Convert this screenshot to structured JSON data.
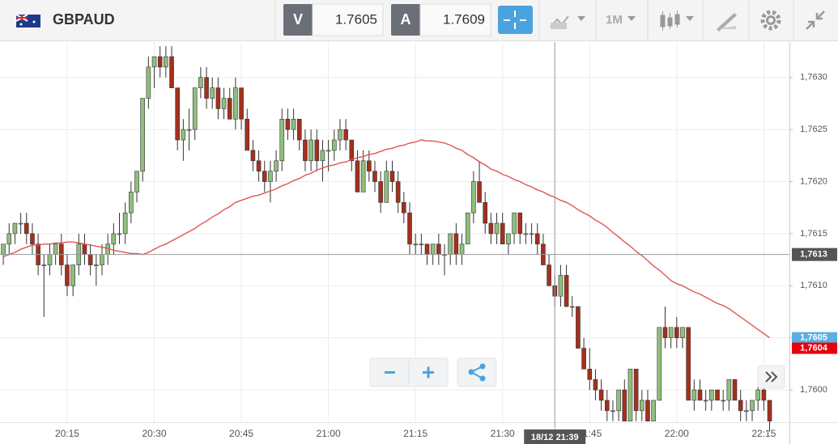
{
  "toolbar": {
    "symbol": "GBPAUD",
    "sell": {
      "label": "V",
      "price": 1.7605
    },
    "buy": {
      "label": "A",
      "price": 1.7609
    },
    "timeframe": "1M"
  },
  "chart_data": {
    "type": "candlestick",
    "categories": [
      null,
      null,
      null,
      null,
      null,
      null,
      null,
      null,
      null,
      null,
      null,
      "20:15",
      null,
      null,
      null,
      null,
      null,
      null,
      null,
      null,
      null,
      null,
      null,
      null,
      null,
      null,
      "20:30",
      null,
      null,
      null,
      null,
      null,
      null,
      null,
      null,
      null,
      null,
      null,
      null,
      null,
      null,
      "20:45",
      null,
      null,
      null,
      null,
      null,
      null,
      null,
      null,
      null,
      null,
      null,
      null,
      null,
      null,
      "21:00",
      null,
      null,
      null,
      null,
      null,
      null,
      null,
      null,
      null,
      null,
      null,
      null,
      null,
      null,
      "21:15",
      null,
      null,
      null,
      null,
      null,
      null,
      null,
      null,
      null,
      null,
      null,
      null,
      null,
      null,
      "21:30",
      null,
      null,
      null,
      null,
      null,
      null,
      null,
      null,
      null,
      null,
      null,
      null,
      null,
      null,
      "21:45",
      null,
      null,
      null,
      null,
      null,
      null,
      null,
      null,
      null,
      null,
      null,
      null,
      null,
      null,
      "22:00",
      null,
      null,
      null,
      null,
      null,
      null,
      null,
      null,
      null,
      null,
      null,
      null,
      null,
      null,
      "22:15",
      null
    ],
    "candles": [
      [
        1.7613,
        1.7614,
        1.7612,
        1.7614
      ],
      [
        1.7614,
        1.7616,
        1.7613,
        1.7615
      ],
      [
        1.7615,
        1.7616,
        1.7614,
        1.7616
      ],
      [
        1.7616,
        1.7617,
        1.7615,
        1.7616
      ],
      [
        1.7616,
        1.7617,
        1.7614,
        1.7615
      ],
      [
        1.7615,
        1.7616,
        1.7613,
        1.7614
      ],
      [
        1.7614,
        1.7615,
        1.7611,
        1.7612
      ],
      [
        1.7612,
        1.7613,
        1.7607,
        1.7612
      ],
      [
        1.7612,
        1.7614,
        1.7611,
        1.7613
      ],
      [
        1.7613,
        1.7614,
        1.7612,
        1.7614
      ],
      [
        1.7614,
        1.7615,
        1.7611,
        1.7612
      ],
      [
        1.7612,
        1.7613,
        1.7609,
        1.761
      ],
      [
        1.761,
        1.7612,
        1.7609,
        1.7612
      ],
      [
        1.7612,
        1.7615,
        1.7611,
        1.7614
      ],
      [
        1.7614,
        1.7615,
        1.7612,
        1.7613
      ],
      [
        1.7613,
        1.7614,
        1.7611,
        1.7612
      ],
      [
        1.7612,
        1.7613,
        1.761,
        1.7612
      ],
      [
        1.7612,
        1.7614,
        1.7611,
        1.7613
      ],
      [
        1.7613,
        1.7615,
        1.7612,
        1.7614
      ],
      [
        1.7614,
        1.7616,
        1.7613,
        1.7615
      ],
      [
        1.7615,
        1.7617,
        1.7614,
        1.7615
      ],
      [
        1.7615,
        1.7618,
        1.7614,
        1.7617
      ],
      [
        1.7617,
        1.762,
        1.7616,
        1.7619
      ],
      [
        1.7619,
        1.7621,
        1.7618,
        1.7621
      ],
      [
        1.7621,
        1.7628,
        1.762,
        1.7628
      ],
      [
        1.7628,
        1.7632,
        1.7627,
        1.7631
      ],
      [
        1.7631,
        1.7632,
        1.7629,
        1.7632
      ],
      [
        1.7632,
        1.7633,
        1.763,
        1.7631
      ],
      [
        1.7631,
        1.7633,
        1.763,
        1.7632
      ],
      [
        1.7632,
        1.7633,
        1.7629,
        1.7629
      ],
      [
        1.7629,
        1.7629,
        1.7623,
        1.7624
      ],
      [
        1.7624,
        1.7626,
        1.7622,
        1.7625
      ],
      [
        1.7625,
        1.7627,
        1.7623,
        1.7625
      ],
      [
        1.7625,
        1.7629,
        1.7624,
        1.7629
      ],
      [
        1.7629,
        1.7631,
        1.7628,
        1.763
      ],
      [
        1.763,
        1.7631,
        1.7627,
        1.7628
      ],
      [
        1.7628,
        1.763,
        1.7627,
        1.7629
      ],
      [
        1.7629,
        1.763,
        1.7626,
        1.7627
      ],
      [
        1.7627,
        1.7629,
        1.7626,
        1.7628
      ],
      [
        1.7628,
        1.7629,
        1.7626,
        1.7626
      ],
      [
        1.7626,
        1.763,
        1.7625,
        1.7629
      ],
      [
        1.7629,
        1.7629,
        1.7625,
        1.7626
      ],
      [
        1.7626,
        1.7627,
        1.7623,
        1.7623
      ],
      [
        1.7623,
        1.7624,
        1.7621,
        1.7622
      ],
      [
        1.7622,
        1.7623,
        1.762,
        1.7621
      ],
      [
        1.7621,
        1.7622,
        1.7619,
        1.762
      ],
      [
        1.762,
        1.7622,
        1.7618,
        1.7621
      ],
      [
        1.7621,
        1.7623,
        1.762,
        1.7622
      ],
      [
        1.7622,
        1.7627,
        1.7621,
        1.7626
      ],
      [
        1.7626,
        1.7627,
        1.7624,
        1.7625
      ],
      [
        1.7625,
        1.7627,
        1.7624,
        1.7626
      ],
      [
        1.7626,
        1.7626,
        1.7623,
        1.7624
      ],
      [
        1.7624,
        1.7625,
        1.7621,
        1.7622
      ],
      [
        1.7622,
        1.7625,
        1.7621,
        1.7624
      ],
      [
        1.7624,
        1.7625,
        1.7621,
        1.7622
      ],
      [
        1.7622,
        1.7624,
        1.762,
        1.7623
      ],
      [
        1.7623,
        1.7624,
        1.7621,
        1.7623
      ],
      [
        1.7623,
        1.7625,
        1.7622,
        1.7624
      ],
      [
        1.7624,
        1.7626,
        1.7623,
        1.7625
      ],
      [
        1.7625,
        1.7626,
        1.7623,
        1.7624
      ],
      [
        1.7624,
        1.7624,
        1.7621,
        1.7622
      ],
      [
        1.7622,
        1.7623,
        1.7619,
        1.7619
      ],
      [
        1.7619,
        1.7623,
        1.7619,
        1.7622
      ],
      [
        1.7622,
        1.7623,
        1.762,
        1.7621
      ],
      [
        1.7621,
        1.7622,
        1.7619,
        1.762
      ],
      [
        1.762,
        1.7621,
        1.7617,
        1.7618
      ],
      [
        1.7618,
        1.7622,
        1.7618,
        1.7621
      ],
      [
        1.7621,
        1.7622,
        1.7619,
        1.762
      ],
      [
        1.762,
        1.7621,
        1.7617,
        1.7618
      ],
      [
        1.7618,
        1.7619,
        1.7616,
        1.7617
      ],
      [
        1.7617,
        1.7618,
        1.7613,
        1.7614
      ],
      [
        1.7614,
        1.7615,
        1.7613,
        1.7614
      ],
      [
        1.7614,
        1.7615,
        1.7613,
        1.7614
      ],
      [
        1.7614,
        1.7614,
        1.7612,
        1.7613
      ],
      [
        1.7613,
        1.7614,
        1.7612,
        1.7614
      ],
      [
        1.7614,
        1.7615,
        1.7612,
        1.7613
      ],
      [
        1.7613,
        1.7614,
        1.7611,
        1.7613
      ],
      [
        1.7613,
        1.7615,
        1.7612,
        1.7615
      ],
      [
        1.7615,
        1.7616,
        1.7612,
        1.7613
      ],
      [
        1.7613,
        1.7615,
        1.7612,
        1.7614
      ],
      [
        1.7614,
        1.7617,
        1.7614,
        1.7617
      ],
      [
        1.7617,
        1.7621,
        1.7616,
        1.762
      ],
      [
        1.762,
        1.7622,
        1.7618,
        1.7618
      ],
      [
        1.7618,
        1.7619,
        1.7615,
        1.7616
      ],
      [
        1.7616,
        1.7617,
        1.7614,
        1.7615
      ],
      [
        1.7615,
        1.7617,
        1.7614,
        1.7616
      ],
      [
        1.7616,
        1.7617,
        1.7614,
        1.7614
      ],
      [
        1.7614,
        1.7615,
        1.7613,
        1.7615
      ],
      [
        1.7615,
        1.7617,
        1.7614,
        1.7617
      ],
      [
        1.7617,
        1.7617,
        1.7614,
        1.7615
      ],
      [
        1.7615,
        1.7616,
        1.7614,
        1.7615
      ],
      [
        1.7615,
        1.7616,
        1.7614,
        1.7615
      ],
      [
        1.7615,
        1.7616,
        1.7613,
        1.7614
      ],
      [
        1.7614,
        1.7615,
        1.7612,
        1.7612
      ],
      [
        1.7612,
        1.7613,
        1.761,
        1.761
      ],
      [
        1.761,
        1.7611,
        1.7608,
        1.7609
      ],
      [
        1.7609,
        1.7612,
        1.7608,
        1.7611
      ],
      [
        1.7611,
        1.7612,
        1.7608,
        1.7608
      ],
      [
        1.7608,
        1.7609,
        1.7607,
        1.7608
      ],
      [
        1.7608,
        1.7608,
        1.7604,
        1.7604
      ],
      [
        1.7604,
        1.7605,
        1.7602,
        1.7602
      ],
      [
        1.7602,
        1.7604,
        1.76,
        1.7601
      ],
      [
        1.7601,
        1.7602,
        1.7599,
        1.76
      ],
      [
        1.76,
        1.7601,
        1.7598,
        1.7599
      ],
      [
        1.7599,
        1.76,
        1.7597,
        1.7598
      ],
      [
        1.7598,
        1.7599,
        1.7597,
        1.7598
      ],
      [
        1.7598,
        1.76,
        1.7597,
        1.76
      ],
      [
        1.76,
        1.7601,
        1.7597,
        1.7597
      ],
      [
        1.7597,
        1.7602,
        1.7597,
        1.7602
      ],
      [
        1.7602,
        1.7602,
        1.7597,
        1.7598
      ],
      [
        1.7598,
        1.76,
        1.7597,
        1.7599
      ],
      [
        1.7599,
        1.76,
        1.7597,
        1.7597
      ],
      [
        1.7597,
        1.7599,
        1.7597,
        1.7599
      ],
      [
        1.7599,
        1.7606,
        1.7599,
        1.7606
      ],
      [
        1.7606,
        1.7608,
        1.7604,
        1.7605
      ],
      [
        1.7605,
        1.7606,
        1.7604,
        1.7606
      ],
      [
        1.7606,
        1.7607,
        1.7604,
        1.7605
      ],
      [
        1.7605,
        1.7606,
        1.7604,
        1.7606
      ],
      [
        1.7606,
        1.7606,
        1.7599,
        1.7599
      ],
      [
        1.7599,
        1.7601,
        1.7598,
        1.76
      ],
      [
        1.76,
        1.7601,
        1.7599,
        1.7599
      ],
      [
        1.7599,
        1.76,
        1.7598,
        1.7599
      ],
      [
        1.7599,
        1.76,
        1.7598,
        1.76
      ],
      [
        1.76,
        1.76,
        1.7599,
        1.7599
      ],
      [
        1.7599,
        1.76,
        1.7598,
        1.7599
      ],
      [
        1.7599,
        1.7601,
        1.7598,
        1.7601
      ],
      [
        1.7601,
        1.7601,
        1.7599,
        1.7599
      ],
      [
        1.7599,
        1.76,
        1.7597,
        1.7598
      ],
      [
        1.7598,
        1.7599,
        1.7597,
        1.7598
      ],
      [
        1.7598,
        1.7599,
        1.7597,
        1.7599
      ],
      [
        1.7599,
        1.7601,
        1.7598,
        1.76
      ],
      [
        1.76,
        1.7601,
        1.7598,
        1.7599
      ],
      [
        1.7599,
        1.7599,
        1.7596,
        1.7597
      ]
    ],
    "moving_average": {
      "color": "#e05555",
      "values": [
        1.76128,
        1.7613,
        1.76132,
        1.76135,
        1.76137,
        1.76139,
        1.76139,
        1.7614,
        1.7614,
        1.76141,
        1.76141,
        1.76142,
        1.76142,
        1.76141,
        1.7614,
        1.76139,
        1.76138,
        1.76137,
        1.76136,
        1.76134,
        1.76133,
        1.76132,
        1.76131,
        1.76131,
        1.7613,
        1.76132,
        1.76135,
        1.76138,
        1.7614,
        1.76143,
        1.76146,
        1.76149,
        1.76152,
        1.76155,
        1.76159,
        1.76162,
        1.76166,
        1.76169,
        1.76173,
        1.76176,
        1.7618,
        1.76182,
        1.76184,
        1.76186,
        1.76187,
        1.76189,
        1.76191,
        1.76193,
        1.76196,
        1.76198,
        1.76201,
        1.76203,
        1.76206,
        1.76208,
        1.76211,
        1.76213,
        1.76215,
        1.76216,
        1.76218,
        1.76219,
        1.76221,
        1.76223,
        1.76224,
        1.76226,
        1.76227,
        1.76229,
        1.76231,
        1.76232,
        1.76234,
        1.76235,
        1.76237,
        1.76238,
        1.7624,
        1.76239,
        1.76239,
        1.76238,
        1.76237,
        1.76235,
        1.76232,
        1.7623,
        1.76226,
        1.76223,
        1.76219,
        1.76216,
        1.76212,
        1.7621,
        1.76207,
        1.76205,
        1.76202,
        1.762,
        1.76197,
        1.76195,
        1.76192,
        1.7619,
        1.76187,
        1.76185,
        1.76182,
        1.7618,
        1.76177,
        1.76173,
        1.7617,
        1.76167,
        1.76163,
        1.7616,
        1.76156,
        1.76151,
        1.76147,
        1.76142,
        1.76138,
        1.76133,
        1.76129,
        1.76124,
        1.76119,
        1.76115,
        1.7611,
        1.76105,
        1.76102,
        1.761,
        1.76097,
        1.76094,
        1.76092,
        1.76089,
        1.76086,
        1.76083,
        1.76081,
        1.76078,
        1.76074,
        1.7607,
        1.76066,
        1.76062,
        1.76058,
        1.76054,
        1.7605
      ]
    },
    "ylim": [
      1.75969,
      1.76334
    ],
    "yticks": [
      {
        "value": 1.76,
        "label": "1,7600"
      },
      {
        "value": 1.7605,
        "label": "1,7605"
      },
      {
        "value": 1.761,
        "label": "1,7610"
      },
      {
        "value": 1.7615,
        "label": "1,7615"
      },
      {
        "value": 1.762,
        "label": "1,7620"
      },
      {
        "value": 1.7625,
        "label": "1,7625"
      },
      {
        "value": 1.763,
        "label": "1,7630"
      }
    ],
    "price_tags": [
      {
        "value": 1.7605,
        "label": "1,7605",
        "color": "#5aaee0"
      },
      {
        "value": 1.7604,
        "label": "1,7604",
        "color": "#e8000b"
      }
    ],
    "crosshair": {
      "x_label": "18/12 21:39",
      "y": {
        "value": 1.7613,
        "label": "1,7613"
      }
    },
    "up_color": "#8fbf7d",
    "down_color": "#a3301d",
    "grid": true
  }
}
